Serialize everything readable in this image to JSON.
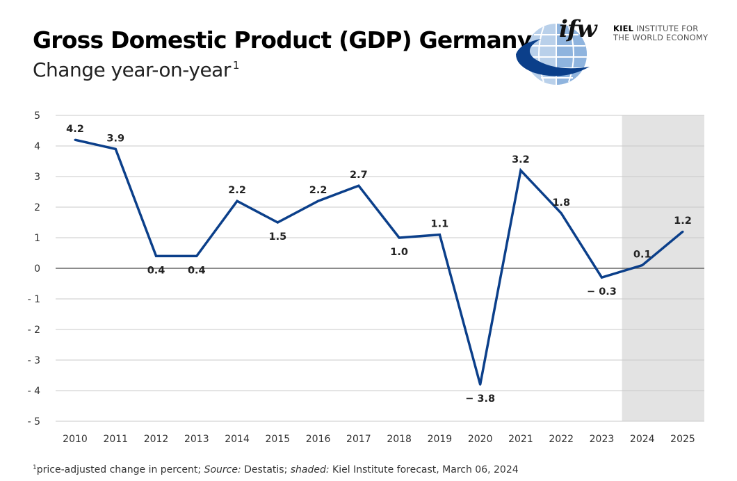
{
  "header": {
    "title": "Gross Domestic Product (GDP) Germany",
    "subtitle": "Change year-on-year",
    "subtitle_footnote_mark": "1"
  },
  "logo": {
    "mark": "ifw",
    "line1_bold": "KIEL",
    "line1_rest": " INSTITUTE FOR",
    "line2": "THE WORLD ECONOMY"
  },
  "footnote": {
    "mark": "1",
    "text1": "price-adjusted change in percent; ",
    "source_label": "Source:",
    "text2": " Destatis; ",
    "shaded_label": "shaded:",
    "text3": " Kiel Institute forecast, March 06, 2024"
  },
  "chart_data": {
    "type": "line",
    "title": "Gross Domestic Product (GDP) Germany",
    "subtitle": "Change year-on-year",
    "xlabel": "",
    "ylabel": "",
    "x": [
      "2010",
      "2011",
      "2012",
      "2013",
      "2014",
      "2015",
      "2016",
      "2017",
      "2018",
      "2019",
      "2020",
      "2021",
      "2022",
      "2023",
      "2024",
      "2025"
    ],
    "series": [
      {
        "name": "GDP change year-on-year",
        "values": [
          4.2,
          3.9,
          0.4,
          0.4,
          2.2,
          1.5,
          2.2,
          2.7,
          1.0,
          1.1,
          -3.8,
          3.2,
          1.8,
          -0.3,
          0.1,
          1.2
        ],
        "labels": [
          "4.2",
          "3.9",
          "0.4",
          "0.4",
          "2.2",
          "1.5",
          "2.2",
          "2.7",
          "1.0",
          "1.1",
          "− 3.8",
          "3.2",
          "1.8",
          "− 0.3",
          "0.1",
          "1.2"
        ],
        "label_pos": [
          "above",
          "above",
          "below",
          "below",
          "above",
          "below",
          "above",
          "above",
          "below",
          "above",
          "below",
          "above",
          "above",
          "below",
          "above",
          "above"
        ],
        "color": "#0b3f8a"
      }
    ],
    "ylim": [
      -5,
      5
    ],
    "yticks": [
      5,
      4,
      3,
      2,
      1,
      0,
      -1,
      -2,
      -3,
      -4,
      -5
    ],
    "ytick_labels": [
      "5",
      "4",
      "3",
      "2",
      "1",
      "0",
      "- 1",
      "- 2",
      "- 3",
      "- 4",
      "- 5"
    ],
    "forecast_shaded_from": "2024",
    "grid": true,
    "colors": {
      "line": "#0b3f8a",
      "grid": "#c8c8c8",
      "zero": "#666666",
      "shade": "#e3e3e3"
    }
  }
}
